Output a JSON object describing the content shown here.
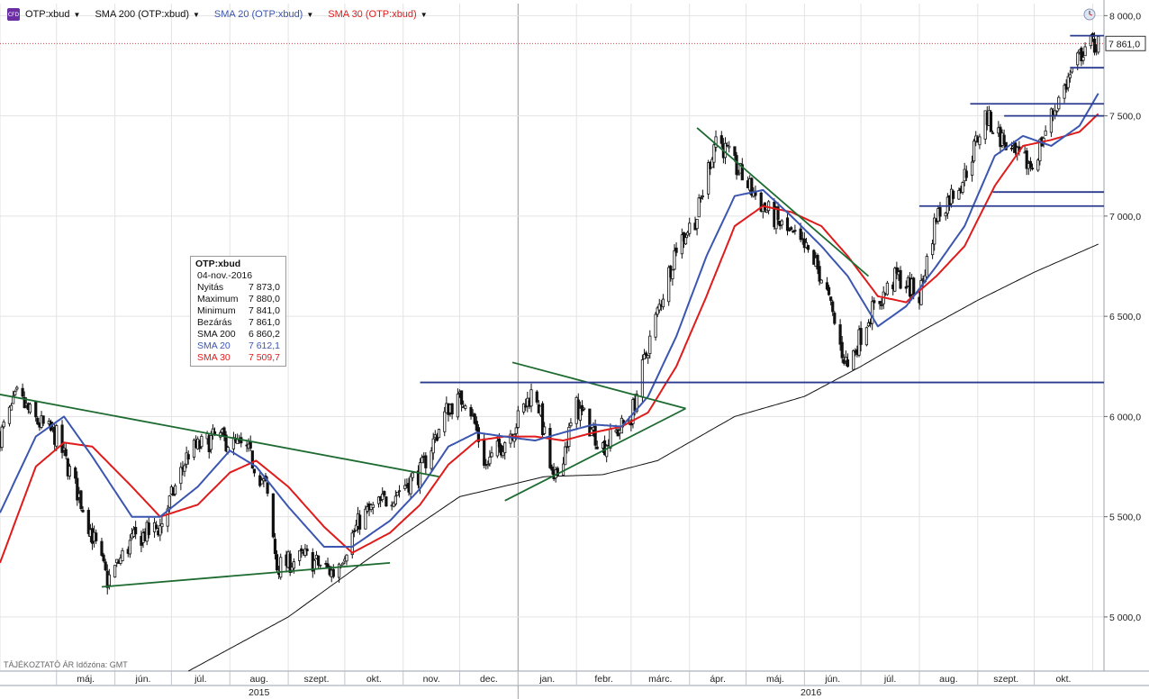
{
  "legend": {
    "logo": "CFD",
    "items": [
      {
        "label": "OTP:xbud",
        "color": "#111111"
      },
      {
        "label": "SMA 200 (OTP:xbud)",
        "color": "#111111"
      },
      {
        "label": "SMA 20 (OTP:xbud)",
        "color": "#3b56b0"
      },
      {
        "label": "SMA 30 (OTP:xbud)",
        "color": "#e01b1b"
      }
    ]
  },
  "icons": {
    "series_menu": "caret-down-icon",
    "clock": "clock-icon",
    "logo": "app-logo-icon"
  },
  "infobox": {
    "title": "OTP:xbud",
    "date": "04-nov.-2016",
    "rows": [
      {
        "label": "Nyitás",
        "value": "7 873,0",
        "color": "#111111"
      },
      {
        "label": "Maximum",
        "value": "7 880,0",
        "color": "#111111"
      },
      {
        "label": "Minimum",
        "value": "7 841,0",
        "color": "#111111"
      },
      {
        "label": "Bezárás",
        "value": "7 861,0",
        "color": "#111111"
      },
      {
        "label": "SMA 200",
        "value": "6 860,2",
        "color": "#111111"
      },
      {
        "label": "SMA 20",
        "value": "7 612,1",
        "color": "#3b56b0"
      },
      {
        "label": "SMA 30",
        "value": "7 509,7",
        "color": "#e01b1b"
      }
    ]
  },
  "footnote": "TÁJÉKOZTATÓ ÁR   Időzóna: GMT",
  "chart_data": {
    "type": "candlestick",
    "y_axis": {
      "ticks": [
        "5 000,0",
        "5 500,0",
        "6 000,0",
        "6 500,0",
        "7 000,0",
        "7 500,0",
        "8 000,0"
      ],
      "tick_values": [
        5000,
        5500,
        6000,
        6500,
        7000,
        7500,
        8000
      ],
      "range": [
        4730,
        8060
      ],
      "position": "right",
      "last_price_label": "7 861,0",
      "last_price": 7861
    },
    "x_axis": {
      "months": [
        "máj.",
        "jún.",
        "júl.",
        "aug.",
        "szept.",
        "okt.",
        "nov.",
        "dec.",
        "jan.",
        "febr.",
        "márc.",
        "ápr.",
        "máj.",
        "jún.",
        "júl.",
        "aug.",
        "szept.",
        "okt."
      ],
      "years": [
        "2015",
        "2016"
      ],
      "range": [
        "2015-04-01",
        "2016-11-07"
      ]
    },
    "colors": {
      "candles": "#111111",
      "sma200": "#111111",
      "sma20": "#3b56b0",
      "sma30": "#e01b1b",
      "trendlines": "#1d6b30",
      "levels": "#2a3a8f",
      "last_price": "#c00000"
    },
    "price_path": [
      [
        "2015-04-01",
        5900
      ],
      [
        "2015-04-10",
        6100
      ],
      [
        "2015-04-20",
        5980
      ],
      [
        "2015-05-01",
        5900
      ],
      [
        "2015-05-15",
        5550
      ],
      [
        "2015-05-28",
        5180
      ],
      [
        "2015-06-10",
        5380
      ],
      [
        "2015-06-25",
        5450
      ],
      [
        "2015-07-10",
        5820
      ],
      [
        "2015-07-25",
        5900
      ],
      [
        "2015-08-10",
        5830
      ],
      [
        "2015-08-20",
        5650
      ],
      [
        "2015-08-26",
        5250
      ],
      [
        "2015-09-10",
        5300
      ],
      [
        "2015-09-25",
        5220
      ],
      [
        "2015-10-10",
        5500
      ],
      [
        "2015-10-25",
        5600
      ],
      [
        "2015-11-10",
        5720
      ],
      [
        "2015-11-25",
        6050
      ],
      [
        "2015-12-05",
        6100
      ],
      [
        "2015-12-15",
        5750
      ],
      [
        "2015-12-30",
        5950
      ],
      [
        "2016-01-10",
        6150
      ],
      [
        "2016-01-20",
        5650
      ],
      [
        "2016-02-01",
        6050
      ],
      [
        "2016-02-15",
        5850
      ],
      [
        "2016-03-01",
        6000
      ],
      [
        "2016-03-10",
        6350
      ],
      [
        "2016-03-25",
        6850
      ],
      [
        "2016-04-05",
        7000
      ],
      [
        "2016-04-15",
        7400
      ],
      [
        "2016-04-25",
        7250
      ],
      [
        "2016-05-10",
        7050
      ],
      [
        "2016-05-25",
        6900
      ],
      [
        "2016-06-05",
        6800
      ],
      [
        "2016-06-12",
        6650
      ],
      [
        "2016-06-20",
        6350
      ],
      [
        "2016-06-24",
        6250
      ],
      [
        "2016-07-05",
        6500
      ],
      [
        "2016-07-20",
        6700
      ],
      [
        "2016-08-01",
        6600
      ],
      [
        "2016-08-10",
        7000
      ],
      [
        "2016-08-25",
        7200
      ],
      [
        "2016-09-05",
        7500
      ],
      [
        "2016-09-20",
        7300
      ],
      [
        "2016-09-30",
        7250
      ],
      [
        "2016-10-10",
        7500
      ],
      [
        "2016-10-20",
        7700
      ],
      [
        "2016-10-28",
        7850
      ],
      [
        "2016-11-04",
        7861
      ]
    ],
    "sma200_path": [
      [
        "2015-07-10",
        4730
      ],
      [
        "2015-09-01",
        5000
      ],
      [
        "2015-10-15",
        5300
      ],
      [
        "2015-12-01",
        5600
      ],
      [
        "2016-01-15",
        5700
      ],
      [
        "2016-02-15",
        5710
      ],
      [
        "2016-03-15",
        5780
      ],
      [
        "2016-04-25",
        6000
      ],
      [
        "2016-06-01",
        6100
      ],
      [
        "2016-07-01",
        6250
      ],
      [
        "2016-08-01",
        6420
      ],
      [
        "2016-09-01",
        6580
      ],
      [
        "2016-10-01",
        6720
      ],
      [
        "2016-11-04",
        6860
      ]
    ],
    "sma20_path": [
      [
        "2015-04-01",
        5520
      ],
      [
        "2015-04-20",
        5900
      ],
      [
        "2015-05-05",
        6000
      ],
      [
        "2015-05-20",
        5800
      ],
      [
        "2015-06-10",
        5500
      ],
      [
        "2015-06-25",
        5500
      ],
      [
        "2015-07-15",
        5650
      ],
      [
        "2015-08-01",
        5830
      ],
      [
        "2015-08-15",
        5750
      ],
      [
        "2015-09-01",
        5550
      ],
      [
        "2015-09-20",
        5350
      ],
      [
        "2015-10-05",
        5350
      ],
      [
        "2015-10-25",
        5480
      ],
      [
        "2015-11-10",
        5640
      ],
      [
        "2015-11-25",
        5850
      ],
      [
        "2015-12-10",
        5920
      ],
      [
        "2015-12-25",
        5900
      ],
      [
        "2016-01-10",
        5880
      ],
      [
        "2016-01-25",
        5920
      ],
      [
        "2016-02-10",
        5960
      ],
      [
        "2016-02-25",
        5950
      ],
      [
        "2016-03-10",
        6100
      ],
      [
        "2016-03-25",
        6400
      ],
      [
        "2016-04-10",
        6800
      ],
      [
        "2016-04-25",
        7100
      ],
      [
        "2016-05-10",
        7130
      ],
      [
        "2016-05-25",
        7000
      ],
      [
        "2016-06-10",
        6850
      ],
      [
        "2016-06-24",
        6700
      ],
      [
        "2016-07-10",
        6450
      ],
      [
        "2016-07-25",
        6550
      ],
      [
        "2016-08-10",
        6750
      ],
      [
        "2016-08-25",
        6950
      ],
      [
        "2016-09-10",
        7300
      ],
      [
        "2016-09-25",
        7400
      ],
      [
        "2016-10-10",
        7350
      ],
      [
        "2016-10-25",
        7450
      ],
      [
        "2016-11-04",
        7612
      ]
    ],
    "sma30_path": [
      [
        "2015-04-01",
        5270
      ],
      [
        "2015-04-20",
        5750
      ],
      [
        "2015-05-05",
        5870
      ],
      [
        "2015-05-20",
        5850
      ],
      [
        "2015-06-10",
        5650
      ],
      [
        "2015-06-25",
        5500
      ],
      [
        "2015-07-15",
        5560
      ],
      [
        "2015-08-01",
        5720
      ],
      [
        "2015-08-15",
        5780
      ],
      [
        "2015-09-01",
        5650
      ],
      [
        "2015-09-20",
        5450
      ],
      [
        "2015-10-05",
        5320
      ],
      [
        "2015-10-25",
        5420
      ],
      [
        "2015-11-10",
        5560
      ],
      [
        "2015-11-25",
        5760
      ],
      [
        "2015-12-10",
        5880
      ],
      [
        "2015-12-25",
        5900
      ],
      [
        "2016-01-10",
        5900
      ],
      [
        "2016-01-25",
        5880
      ],
      [
        "2016-02-10",
        5920
      ],
      [
        "2016-02-25",
        5950
      ],
      [
        "2016-03-10",
        6020
      ],
      [
        "2016-03-25",
        6250
      ],
      [
        "2016-04-10",
        6600
      ],
      [
        "2016-04-25",
        6950
      ],
      [
        "2016-05-10",
        7050
      ],
      [
        "2016-05-25",
        7020
      ],
      [
        "2016-06-10",
        6950
      ],
      [
        "2016-06-24",
        6800
      ],
      [
        "2016-07-10",
        6600
      ],
      [
        "2016-07-25",
        6570
      ],
      [
        "2016-08-10",
        6700
      ],
      [
        "2016-08-25",
        6850
      ],
      [
        "2016-09-10",
        7150
      ],
      [
        "2016-09-25",
        7350
      ],
      [
        "2016-10-10",
        7380
      ],
      [
        "2016-10-25",
        7420
      ],
      [
        "2016-11-04",
        7510
      ]
    ],
    "trendlines": [
      {
        "from": [
          "2015-04-01",
          6110
        ],
        "to": [
          "2015-11-20",
          5700
        ]
      },
      {
        "from": [
          "2015-05-25",
          5150
        ],
        "to": [
          "2015-10-25",
          5270
        ]
      },
      {
        "from": [
          "2015-12-29",
          6270
        ],
        "to": [
          "2016-03-30",
          6040
        ]
      },
      {
        "from": [
          "2015-12-25",
          5580
        ],
        "to": [
          "2016-03-30",
          6040
        ]
      },
      {
        "from": [
          "2016-04-05",
          7440
        ],
        "to": [
          "2016-07-05",
          6700
        ]
      }
    ],
    "horizontal_levels": [
      {
        "from": "2015-11-10",
        "to": "2016-11-07",
        "value": 6170
      },
      {
        "from": "2016-08-01",
        "to": "2016-11-07",
        "value": 7050
      },
      {
        "from": "2016-09-09",
        "to": "2016-11-07",
        "value": 7120
      },
      {
        "from": "2016-08-28",
        "to": "2016-11-07",
        "value": 7560
      },
      {
        "from": "2016-09-15",
        "to": "2016-11-07",
        "value": 7500
      },
      {
        "from": "2016-10-20",
        "to": "2016-11-07",
        "value": 7740
      },
      {
        "from": "2016-10-20",
        "to": "2016-11-07",
        "value": 7900
      }
    ]
  }
}
